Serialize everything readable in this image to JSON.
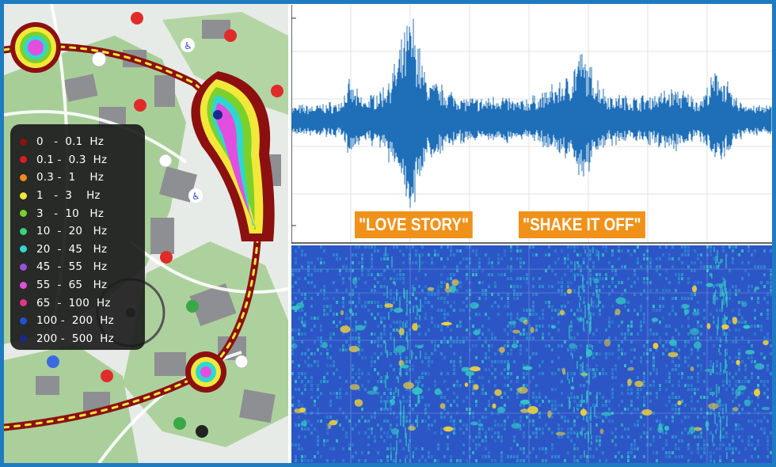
{
  "legend": {
    "items": [
      {
        "label": "0   -  0.1  Hz",
        "color": "#8c1010"
      },
      {
        "label": "0.1 -  0.3  Hz",
        "color": "#d62020"
      },
      {
        "label": "0.3 -  1    Hz",
        "color": "#f08a1a"
      },
      {
        "label": "1   -  3    Hz",
        "color": "#f2e83a"
      },
      {
        "label": "3   -  10   Hz",
        "color": "#7bd12b"
      },
      {
        "label": "10  -  20   Hz",
        "color": "#34d67a"
      },
      {
        "label": "20  -  45   Hz",
        "color": "#2ed8d0"
      },
      {
        "label": "45  -  55   Hz",
        "color": "#9a4fe0"
      },
      {
        "label": "55  -  65   Hz",
        "color": "#e24fe0"
      },
      {
        "label": "65  -  100  Hz",
        "color": "#e8338a"
      },
      {
        "label": "100 -  200  Hz",
        "color": "#2150d8"
      },
      {
        "label": "200 -  500  Hz",
        "color": "#172a8a"
      }
    ]
  },
  "annotations": {
    "song1": "\"LOVE STORY\"",
    "song2": "\"SHAKE IT OFF\""
  },
  "chart_data": [
    {
      "type": "line",
      "series": [
        {
          "values_note_free": true,
          "envelope": [
            {
              "x": 0.0,
              "y": 0.14
            },
            {
              "x": 0.05,
              "y": 0.15
            },
            {
              "x": 0.1,
              "y": 0.18
            },
            {
              "x": 0.12,
              "y": 0.35
            },
            {
              "x": 0.15,
              "y": 0.2
            },
            {
              "x": 0.19,
              "y": 0.3
            },
            {
              "x": 0.22,
              "y": 0.55
            },
            {
              "x": 0.25,
              "y": 1.0
            },
            {
              "x": 0.28,
              "y": 0.4
            },
            {
              "x": 0.32,
              "y": 0.3
            },
            {
              "x": 0.36,
              "y": 0.22
            },
            {
              "x": 0.4,
              "y": 0.2
            },
            {
              "x": 0.43,
              "y": 0.25
            },
            {
              "x": 0.47,
              "y": 0.18
            },
            {
              "x": 0.52,
              "y": 0.25
            },
            {
              "x": 0.58,
              "y": 0.42
            },
            {
              "x": 0.6,
              "y": 0.65
            },
            {
              "x": 0.62,
              "y": 0.5
            },
            {
              "x": 0.66,
              "y": 0.25
            },
            {
              "x": 0.72,
              "y": 0.22
            },
            {
              "x": 0.8,
              "y": 0.3
            },
            {
              "x": 0.85,
              "y": 0.2
            },
            {
              "x": 0.89,
              "y": 0.5
            },
            {
              "x": 0.92,
              "y": 0.22
            },
            {
              "x": 0.96,
              "y": 0.15
            },
            {
              "x": 1.0,
              "y": 0.14
            }
          ]
        }
      ],
      "grid": true
    },
    {
      "type": "heatmap",
      "colormap": [
        "#2c56c6",
        "#2f8fd6",
        "#34c6c4",
        "#f2d03a"
      ],
      "grid": true
    }
  ]
}
